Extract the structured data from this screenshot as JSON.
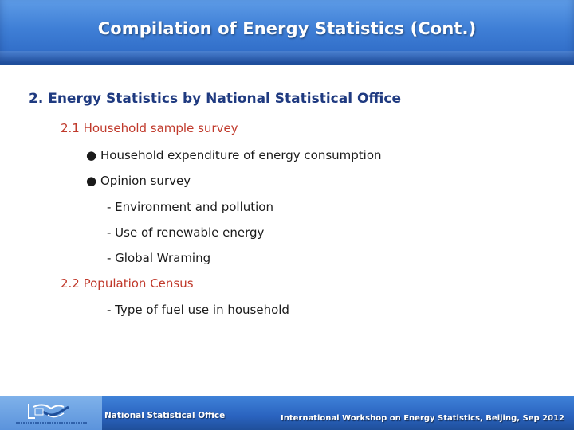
{
  "slide": {
    "title": "Compilation of Energy Statistics (Cont.)",
    "heading": "2. Energy Statistics by National Statistical Office",
    "section1": {
      "label": "2.1 Household sample survey",
      "bullets": [
        "Household expenditure of energy consumption",
        "Opinion survey"
      ],
      "opinion_items": [
        "- Environment and pollution",
        "- Use of renewable energy",
        "- Global Wraming"
      ]
    },
    "section2": {
      "label": "2.2 Population Census",
      "items": [
        "- Type of fuel use in household"
      ]
    },
    "bullet_glyph": "●"
  },
  "footer": {
    "office": "National  Statistical Office",
    "event": "International Workshop on Energy Statistics, Beijing, Sep 2012"
  },
  "colors": {
    "title_bar": "#3f7fd6",
    "heading": "#1f3a80",
    "section_label": "#c0392b",
    "footer": "#2a63bf"
  }
}
